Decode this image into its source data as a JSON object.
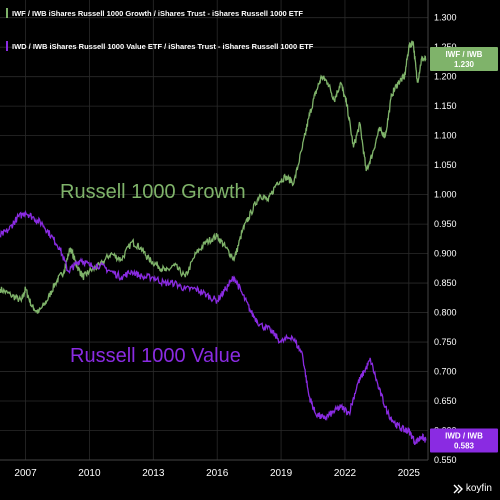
{
  "legend": [
    {
      "label": "IWF / IWB  iShares Russell 1000 Growth / iShares Trust - iShares Russell 1000 ETF",
      "color": "#7fb36a"
    },
    {
      "label": "IWD / IWB  iShares Russell 1000 Value ETF / iShares Trust - iShares Russell 1000 ETF",
      "color": "#8a2be2"
    }
  ],
  "brand": "koyfin",
  "chart_data": {
    "type": "line",
    "title": "",
    "xlabel": "",
    "ylabel": "",
    "xlim": [
      2005.8,
      2025.9
    ],
    "ylim": [
      0.55,
      1.33
    ],
    "x_ticks": [
      "2007",
      "2010",
      "2013",
      "2016",
      "2019",
      "2022",
      "2025"
    ],
    "y_ticks": [
      "0.550",
      "0.600",
      "0.650",
      "0.700",
      "0.750",
      "0.800",
      "0.850",
      "0.900",
      "0.950",
      "1.000",
      "1.050",
      "1.100",
      "1.150",
      "1.200",
      "1.250",
      "1.300"
    ],
    "grid": true,
    "annotations": [
      {
        "text": "Russell 1000 Growth",
        "color": "#7fb36a"
      },
      {
        "text": "Russell 1000 Value",
        "color": "#8a2be2"
      }
    ],
    "series": [
      {
        "name": "IWF / IWB",
        "color": "#7fb36a",
        "last_label": "IWF / IWB",
        "last_value": "1.230",
        "x": [
          2005.8,
          2006.3,
          2006.8,
          2007.0,
          2007.3,
          2007.6,
          2008.0,
          2008.4,
          2008.8,
          2009.1,
          2009.4,
          2009.7,
          2010.0,
          2010.5,
          2011.0,
          2011.5,
          2012.0,
          2012.4,
          2012.8,
          2013.2,
          2013.6,
          2014.0,
          2014.5,
          2015.0,
          2015.5,
          2016.0,
          2016.4,
          2016.8,
          2017.2,
          2017.6,
          2018.0,
          2018.4,
          2018.8,
          2019.2,
          2019.6,
          2020.0,
          2020.3,
          2020.6,
          2020.9,
          2021.2,
          2021.5,
          2021.8,
          2022.1,
          2022.4,
          2022.7,
          2023.0,
          2023.3,
          2023.6,
          2023.9,
          2024.2,
          2024.5,
          2024.8,
          2025.0,
          2025.2,
          2025.4,
          2025.6,
          2025.8
        ],
        "values": [
          0.84,
          0.83,
          0.82,
          0.84,
          0.81,
          0.8,
          0.82,
          0.85,
          0.87,
          0.91,
          0.88,
          0.86,
          0.87,
          0.88,
          0.9,
          0.89,
          0.92,
          0.91,
          0.89,
          0.88,
          0.87,
          0.88,
          0.86,
          0.9,
          0.92,
          0.93,
          0.91,
          0.89,
          0.94,
          0.97,
          1.0,
          0.99,
          1.02,
          1.03,
          1.02,
          1.08,
          1.13,
          1.17,
          1.2,
          1.19,
          1.16,
          1.19,
          1.15,
          1.08,
          1.12,
          1.04,
          1.07,
          1.11,
          1.1,
          1.17,
          1.19,
          1.2,
          1.25,
          1.26,
          1.19,
          1.23,
          1.23
        ]
      },
      {
        "name": "IWD / IWB",
        "color": "#8a2be2",
        "last_label": "IWD / IWB",
        "last_value": "0.583",
        "x": [
          2005.8,
          2006.2,
          2006.6,
          2007.0,
          2007.4,
          2007.8,
          2008.2,
          2008.6,
          2009.0,
          2009.3,
          2009.6,
          2010.0,
          2010.5,
          2011.0,
          2011.5,
          2012.0,
          2012.5,
          2013.0,
          2013.5,
          2014.0,
          2014.5,
          2015.0,
          2015.5,
          2016.0,
          2016.4,
          2016.8,
          2017.2,
          2017.6,
          2018.0,
          2018.5,
          2019.0,
          2019.5,
          2020.0,
          2020.3,
          2020.6,
          2021.0,
          2021.4,
          2021.8,
          2022.2,
          2022.6,
          2022.9,
          2023.2,
          2023.6,
          2024.0,
          2024.4,
          2024.8,
          2025.0,
          2025.3,
          2025.6,
          2025.8
        ],
        "values": [
          0.93,
          0.94,
          0.96,
          0.97,
          0.96,
          0.95,
          0.93,
          0.91,
          0.87,
          0.88,
          0.89,
          0.88,
          0.88,
          0.87,
          0.86,
          0.87,
          0.86,
          0.86,
          0.85,
          0.85,
          0.84,
          0.84,
          0.83,
          0.82,
          0.84,
          0.86,
          0.83,
          0.8,
          0.78,
          0.77,
          0.75,
          0.76,
          0.73,
          0.66,
          0.63,
          0.62,
          0.63,
          0.64,
          0.63,
          0.68,
          0.7,
          0.72,
          0.67,
          0.63,
          0.61,
          0.6,
          0.6,
          0.58,
          0.59,
          0.583
        ]
      }
    ]
  }
}
